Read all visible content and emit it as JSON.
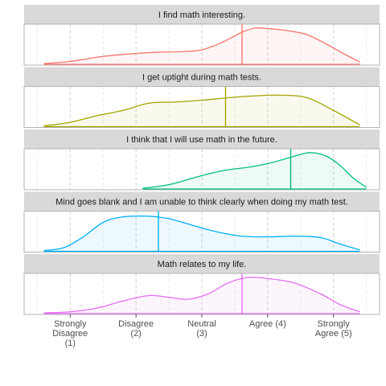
{
  "chart_data": {
    "type": "area",
    "facets": [
      {
        "title": "I find math interesting.",
        "color": "#F8766D",
        "mean": 3.61,
        "density": [
          [
            0.6,
            0.02
          ],
          [
            1.0,
            0.08
          ],
          [
            1.5,
            0.22
          ],
          [
            2.0,
            0.3
          ],
          [
            2.4,
            0.34
          ],
          [
            2.7,
            0.35
          ],
          [
            3.0,
            0.4
          ],
          [
            3.3,
            0.6
          ],
          [
            3.6,
            0.88
          ],
          [
            3.8,
            1.0
          ],
          [
            4.0,
            0.99
          ],
          [
            4.3,
            0.93
          ],
          [
            4.6,
            0.82
          ],
          [
            4.9,
            0.55
          ],
          [
            5.2,
            0.25
          ],
          [
            5.4,
            0.06
          ]
        ]
      },
      {
        "title": "I get uptight during math tests.",
        "color": "#A3A500",
        "mean": 3.36,
        "density": [
          [
            0.6,
            0.02
          ],
          [
            1.0,
            0.12
          ],
          [
            1.4,
            0.3
          ],
          [
            1.8,
            0.45
          ],
          [
            2.2,
            0.65
          ],
          [
            2.6,
            0.68
          ],
          [
            3.0,
            0.73
          ],
          [
            3.4,
            0.8
          ],
          [
            3.8,
            0.85
          ],
          [
            4.2,
            0.87
          ],
          [
            4.6,
            0.8
          ],
          [
            5.0,
            0.45
          ],
          [
            5.4,
            0.05
          ]
        ]
      },
      {
        "title": "I think that I will use math in the future.",
        "color": "#00BF7D",
        "mean": 4.35,
        "density": [
          [
            2.1,
            0.02
          ],
          [
            2.5,
            0.12
          ],
          [
            2.9,
            0.32
          ],
          [
            3.3,
            0.5
          ],
          [
            3.7,
            0.6
          ],
          [
            4.0,
            0.7
          ],
          [
            4.3,
            0.85
          ],
          [
            4.55,
            0.98
          ],
          [
            4.7,
            1.0
          ],
          [
            4.9,
            0.9
          ],
          [
            5.1,
            0.65
          ],
          [
            5.3,
            0.3
          ],
          [
            5.5,
            0.05
          ]
        ]
      },
      {
        "title": "Mind goes blank and I am unable to think clearly when doing my math test.",
        "color": "#00B0F6",
        "mean": 2.34,
        "density": [
          [
            0.6,
            0.02
          ],
          [
            0.9,
            0.1
          ],
          [
            1.2,
            0.4
          ],
          [
            1.5,
            0.8
          ],
          [
            1.8,
            0.95
          ],
          [
            2.2,
            0.97
          ],
          [
            2.5,
            0.9
          ],
          [
            2.8,
            0.75
          ],
          [
            3.2,
            0.55
          ],
          [
            3.6,
            0.42
          ],
          [
            4.0,
            0.4
          ],
          [
            4.4,
            0.42
          ],
          [
            4.8,
            0.38
          ],
          [
            5.1,
            0.2
          ],
          [
            5.4,
            0.04
          ]
        ]
      },
      {
        "title": "Math relates to my life.",
        "color": "#E76BF3",
        "mean": 3.61,
        "density": [
          [
            0.6,
            0.02
          ],
          [
            1.0,
            0.05
          ],
          [
            1.4,
            0.15
          ],
          [
            1.8,
            0.35
          ],
          [
            2.2,
            0.5
          ],
          [
            2.5,
            0.45
          ],
          [
            2.8,
            0.4
          ],
          [
            3.1,
            0.55
          ],
          [
            3.4,
            0.85
          ],
          [
            3.7,
            1.0
          ],
          [
            4.0,
            0.97
          ],
          [
            4.4,
            0.85
          ],
          [
            4.8,
            0.55
          ],
          [
            5.1,
            0.25
          ],
          [
            5.4,
            0.05
          ]
        ]
      }
    ],
    "x_ticks": [
      {
        "value": 1,
        "label": [
          "Strongly",
          "Disagree",
          "(1)"
        ]
      },
      {
        "value": 2,
        "label": [
          "Disagree",
          "(2)"
        ]
      },
      {
        "value": 3,
        "label": [
          "Neutral",
          "(3)"
        ]
      },
      {
        "value": 4,
        "label": [
          "Agree (4)"
        ]
      },
      {
        "value": 5,
        "label": [
          "Strongly",
          "Agree (5)"
        ]
      }
    ],
    "xlim": [
      0.3,
      5.7
    ],
    "grid": true,
    "xlabel": "",
    "ylabel": ""
  }
}
